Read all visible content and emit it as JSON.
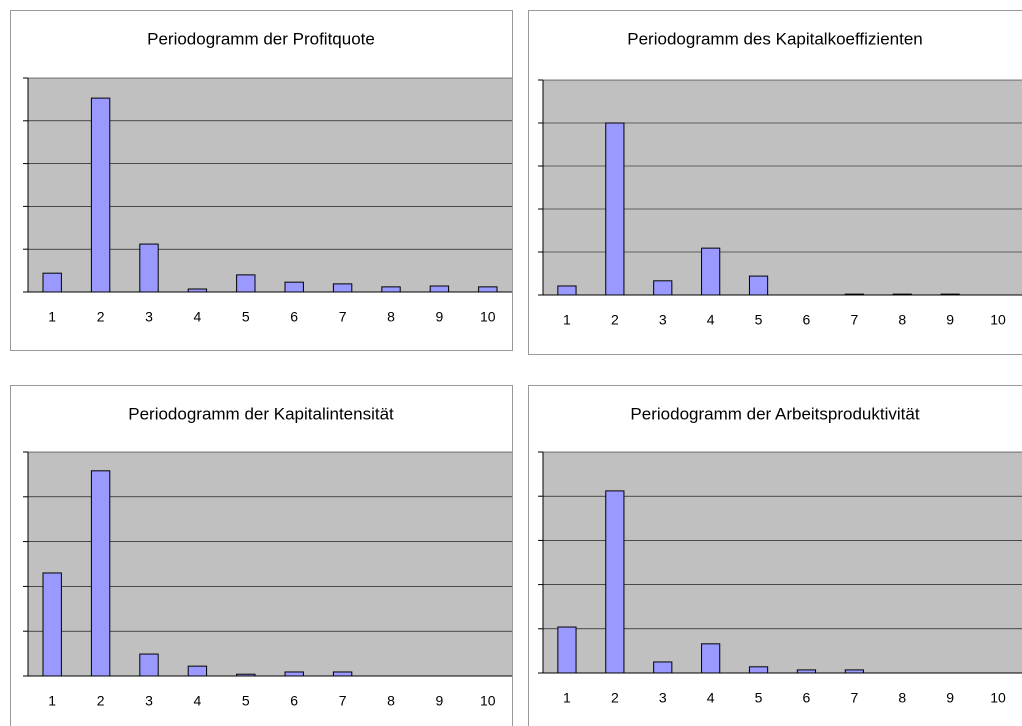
{
  "chart_data": [
    {
      "type": "bar",
      "title": "Periodogramm der Profitquote",
      "categories": [
        "1",
        "2",
        "3",
        "4",
        "5",
        "6",
        "7",
        "8",
        "9",
        "10"
      ],
      "values": [
        0.44,
        4.53,
        1.12,
        0.07,
        0.4,
        0.23,
        0.19,
        0.12,
        0.14,
        0.12
      ],
      "color": "#9999ff",
      "plot_background": "#c0c0c0",
      "ylim": [
        0,
        5
      ],
      "yticks": [
        0,
        1,
        2,
        3,
        4,
        5
      ],
      "grid": true
    },
    {
      "type": "bar",
      "title": "Periodogramm des Kapitalkoeffizienten",
      "categories": [
        "1",
        "2",
        "3",
        "4",
        "5",
        "6",
        "7",
        "8",
        "9",
        "10"
      ],
      "values": [
        0.21,
        4.0,
        0.33,
        1.09,
        0.44,
        0,
        0.02,
        0.02,
        0.02,
        0
      ],
      "color": "#9999ff",
      "plot_background": "#c0c0c0",
      "ylim": [
        0,
        5
      ],
      "yticks": [
        0,
        1,
        2,
        3,
        4,
        5
      ],
      "grid": true
    },
    {
      "type": "bar",
      "title": "Periodogramm der Kapitalintensität",
      "categories": [
        "1",
        "2",
        "3",
        "4",
        "5",
        "6",
        "7",
        "8",
        "9",
        "10"
      ],
      "values": [
        2.3,
        4.58,
        0.49,
        0.22,
        0.04,
        0.09,
        0.09,
        0,
        0,
        0
      ],
      "color": "#9999ff",
      "plot_background": "#c0c0c0",
      "ylim": [
        0,
        5
      ],
      "yticks": [
        0,
        1,
        2,
        3,
        4,
        5
      ],
      "grid": true
    },
    {
      "type": "bar",
      "title": "Periodogramm der Arbeitsproduktivität",
      "categories": [
        "1",
        "2",
        "3",
        "4",
        "5",
        "6",
        "7",
        "8",
        "9",
        "10"
      ],
      "values": [
        1.04,
        4.12,
        0.25,
        0.66,
        0.14,
        0.07,
        0.07,
        0,
        0,
        0
      ],
      "color": "#9999ff",
      "plot_background": "#c0c0c0",
      "ylim": [
        0,
        5
      ],
      "yticks": [
        0,
        1,
        2,
        3,
        4,
        5
      ],
      "grid": true
    }
  ]
}
